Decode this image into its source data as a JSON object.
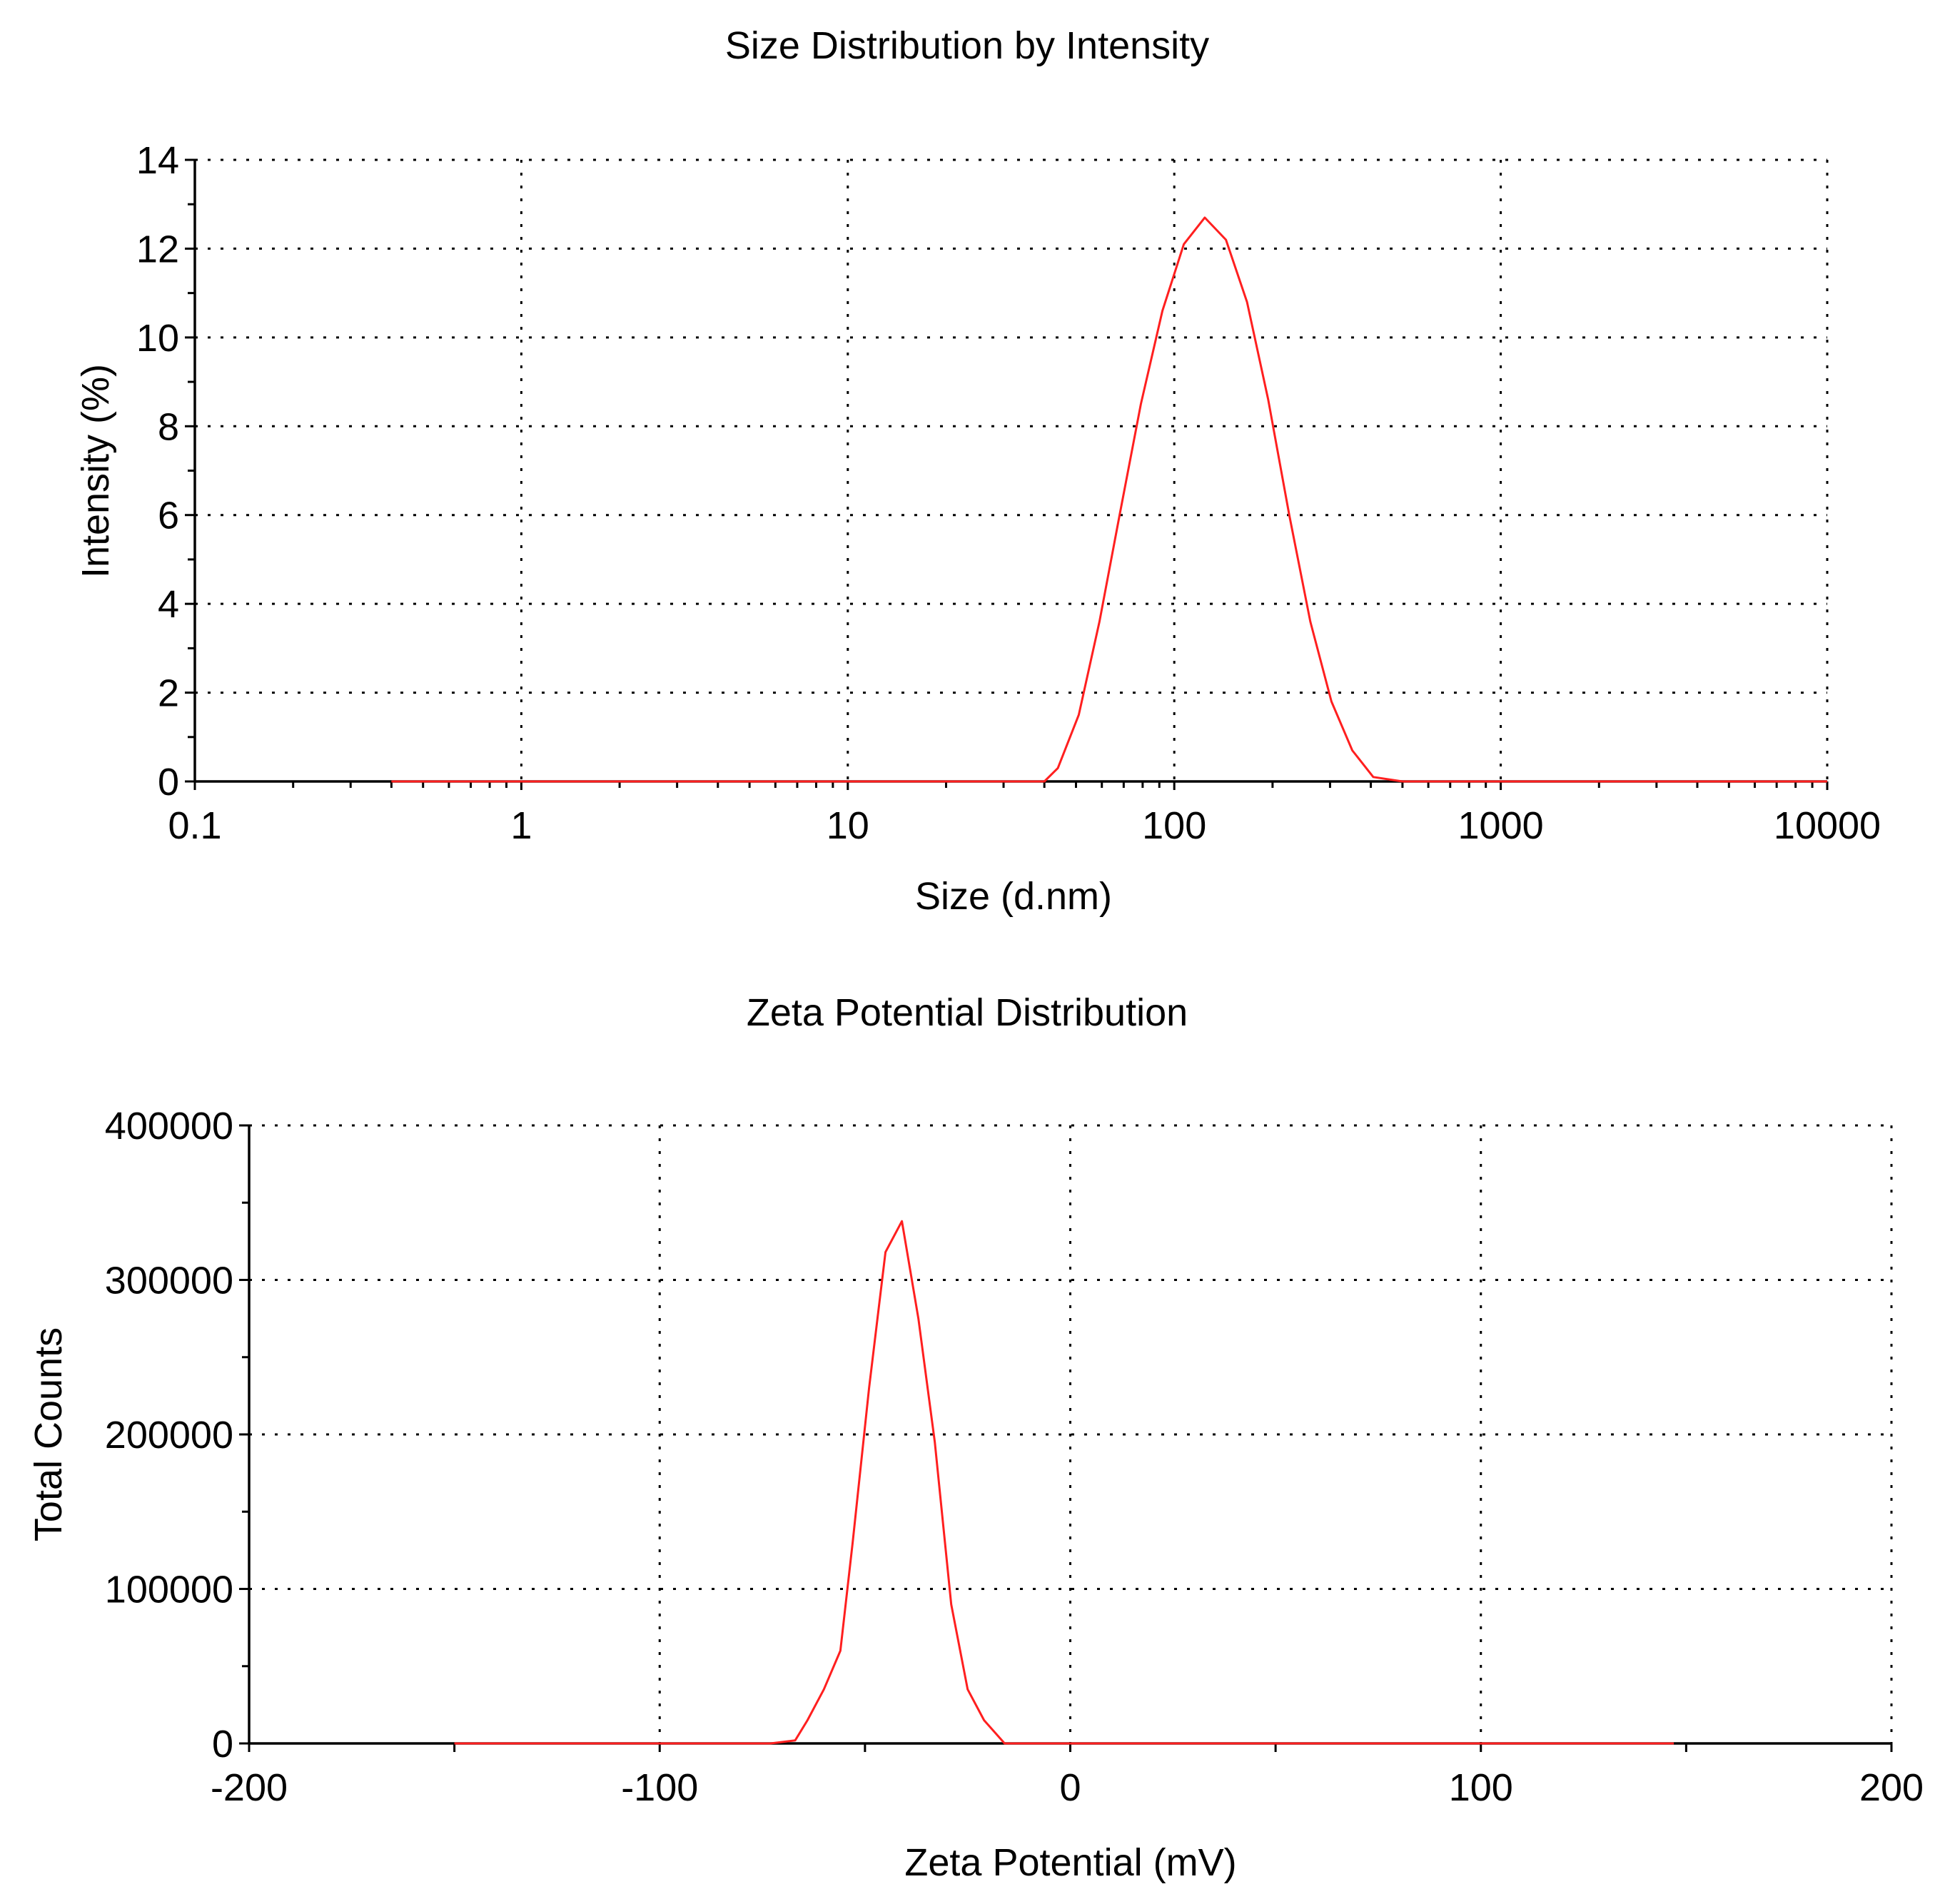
{
  "chart_data": [
    {
      "type": "line",
      "title": "Size Distribution by Intensity",
      "xlabel": "Size (d.nm)",
      "ylabel": "Intensity (%)",
      "x_scale": "log",
      "xlim": [
        0.1,
        10000
      ],
      "ylim": [
        0,
        14
      ],
      "x_ticks": [
        0.1,
        1,
        10,
        100,
        1000,
        10000
      ],
      "x_tick_labels": [
        "0.1",
        "1",
        "10",
        "100",
        "1000",
        "10000"
      ],
      "y_ticks": [
        0,
        2,
        4,
        6,
        8,
        10,
        12,
        14
      ],
      "y_tick_labels": [
        "0",
        "2",
        "4",
        "6",
        "8",
        "10",
        "12",
        "14"
      ],
      "grid": true,
      "series": [
        {
          "color": "#ff1f1f",
          "x": [
            0.4,
            1,
            5,
            20,
            40,
            44,
            51,
            59,
            68,
            79,
            92,
            107,
            124,
            144,
            167,
            194,
            225,
            261,
            303,
            351,
            407,
            500,
            1000,
            5000,
            10000
          ],
          "y": [
            0,
            0,
            0,
            0,
            0,
            0.3,
            1.5,
            3.6,
            6.0,
            8.5,
            10.6,
            12.1,
            12.7,
            12.2,
            10.8,
            8.6,
            6.0,
            3.6,
            1.8,
            0.7,
            0.1,
            0,
            0,
            0,
            0
          ]
        }
      ]
    },
    {
      "type": "line",
      "title": "Zeta Potential Distribution",
      "xlabel": "Zeta Potential (mV)",
      "ylabel": "Total Counts",
      "xlim": [
        -200,
        200
      ],
      "ylim": [
        0,
        400000
      ],
      "x_ticks": [
        -200,
        -100,
        0,
        100,
        200
      ],
      "x_tick_labels": [
        "-200",
        "-100",
        "0",
        "100",
        "200"
      ],
      "y_ticks": [
        0,
        100000,
        200000,
        300000,
        400000
      ],
      "y_tick_labels": [
        "0",
        "100000",
        "200000",
        "300000",
        "400000"
      ],
      "grid": true,
      "series": [
        {
          "color": "#ff1f1f",
          "x": [
            -150,
            -100,
            -73,
            -67,
            -64,
            -60,
            -56,
            -53,
            -49,
            -45,
            -41,
            -37,
            -33,
            -29,
            -25,
            -21,
            -16,
            0,
            50,
            100,
            147
          ],
          "y": [
            0,
            0,
            0,
            2000,
            15000,
            35000,
            60000,
            130000,
            230000,
            318000,
            338000,
            275000,
            195000,
            90000,
            35000,
            15000,
            0,
            0,
            0,
            0,
            0
          ]
        }
      ]
    }
  ]
}
